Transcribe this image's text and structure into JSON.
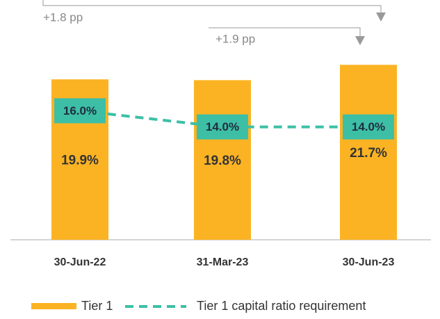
{
  "chart_data": {
    "type": "bar_line",
    "categories": [
      "30-Jun-22",
      "31-Mar-23",
      "30-Jun-23"
    ],
    "series": [
      {
        "name": "Tier 1",
        "type": "bar",
        "color": "#fbb323",
        "values": [
          19.9,
          19.8,
          21.7
        ],
        "value_labels": [
          "19.9%",
          "19.8%",
          "21.7%"
        ]
      },
      {
        "name": "Tier 1 capital ratio requirement",
        "type": "line",
        "color": "#3dbfa6",
        "values": [
          16.0,
          14.0,
          14.0
        ],
        "value_labels": [
          "16.0%",
          "14.0%",
          "14.0%"
        ]
      }
    ],
    "annotations": [
      "+1.8 pp",
      "+1.9 pp"
    ]
  }
}
